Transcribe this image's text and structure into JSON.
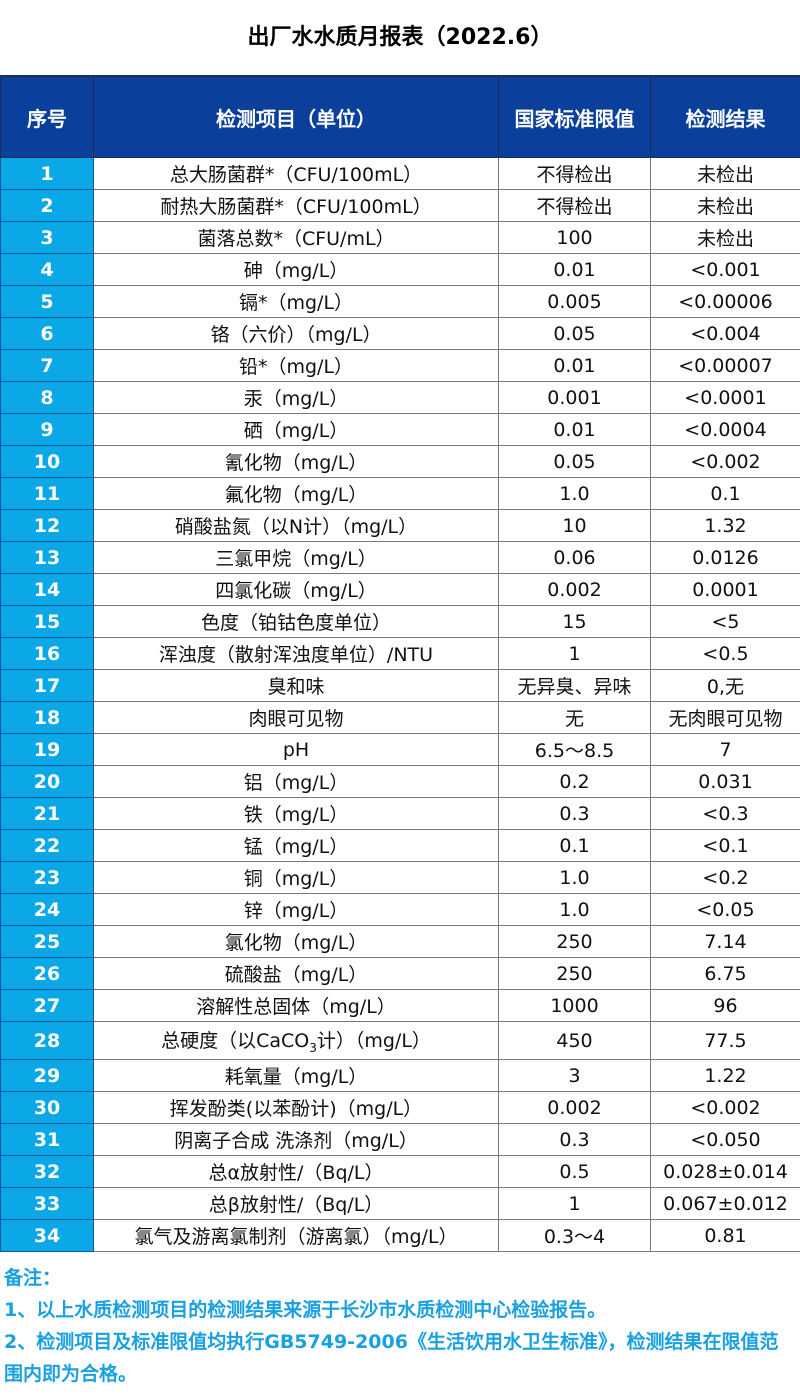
{
  "title": "出厂水水质月报表（2022.6）",
  "headers": [
    "序号",
    "检测项目（单位）",
    "国家标准限值",
    "检测结果"
  ],
  "rows": [
    [
      "1",
      "总大肠菌群*（CFU/100mL）",
      "不得检出",
      "未检出"
    ],
    [
      "2",
      "耐热大肠菌群*（CFU/100mL）",
      "不得检出",
      "未检出"
    ],
    [
      "3",
      "菌落总数*（CFU/mL）",
      "100",
      "未检出"
    ],
    [
      "4",
      "砷（mg/L）",
      "0.01",
      "<0.001"
    ],
    [
      "5",
      "镉*（mg/L）",
      "0.005",
      "<0.00006"
    ],
    [
      "6",
      "铬（六价）（mg/L）",
      "0.05",
      "<0.004"
    ],
    [
      "7",
      "铅*（mg/L）",
      "0.01",
      "<0.00007"
    ],
    [
      "8",
      "汞（mg/L）",
      "0.001",
      "<0.0001"
    ],
    [
      "9",
      "硒（mg/L）",
      "0.01",
      "<0.0004"
    ],
    [
      "10",
      "氰化物（mg/L）",
      "0.05",
      "<0.002"
    ],
    [
      "11",
      "氟化物（mg/L）",
      "1.0",
      "0.1"
    ],
    [
      "12",
      "硝酸盐氮（以N计）（mg/L）",
      "10",
      "1.32"
    ],
    [
      "13",
      "三氯甲烷（mg/L）",
      "0.06",
      "0.0126"
    ],
    [
      "14",
      "四氯化碳（mg/L）",
      "0.002",
      "0.0001"
    ],
    [
      "15",
      "色度（铂钴色度单位）",
      "15",
      "<5"
    ],
    [
      "16",
      "浑浊度（散射浑浊度单位）/NTU",
      "1",
      "<0.5"
    ],
    [
      "17",
      "臭和味",
      "无异臭、异味",
      "0,无"
    ],
    [
      "18",
      "肉眼可见物",
      "无",
      "无肉眼可见物"
    ],
    [
      "19",
      "pH",
      "6.5～8.5",
      "7"
    ],
    [
      "20",
      "铝（mg/L）",
      "0.2",
      "0.031"
    ],
    [
      "21",
      "铁（mg/L）",
      "0.3",
      "<0.3"
    ],
    [
      "22",
      "锰（mg/L）",
      "0.1",
      "<0.1"
    ],
    [
      "23",
      "铜（mg/L）",
      "1.0",
      "<0.2"
    ],
    [
      "24",
      "锌（mg/L）",
      "1.0",
      "<0.05"
    ],
    [
      "25",
      "氯化物（mg/L）",
      "250",
      "7.14"
    ],
    [
      "26",
      "硫酸盐（mg/L）",
      "250",
      "6.75"
    ],
    [
      "27",
      "溶解性总固体（mg/L）",
      "1000",
      "96"
    ],
    [
      "28",
      [
        "总硬度（以CaCO",
        "3",
        "计）（mg/L）"
      ],
      "450",
      "77.5"
    ],
    [
      "29",
      "耗氧量（mg/L）",
      "3",
      "1.22"
    ],
    [
      "30",
      "挥发酚类(以苯酚计)（mg/L）",
      "0.002",
      "<0.002"
    ],
    [
      "31",
      "阴离子合成 洗涤剂（mg/L）",
      "0.3",
      "<0.050"
    ],
    [
      "32",
      "总α放射性/（Bq/L）",
      "0.5",
      "0.028±0.014"
    ],
    [
      "33",
      "总β放射性/（Bq/L）",
      "1",
      "0.067±0.012"
    ],
    [
      "34",
      "氯气及游离氯制剂（游离氯）（mg/L）",
      "0.3～4",
      "0.81"
    ]
  ],
  "notes": {
    "heading": "备注：",
    "lines": [
      "1、以上水质检测项目的检测结果来源于长沙市水质检测中心检验报告。",
      "2、检测项目及标准限值均执行GB5749-2006《生活饮用水卫生标准》，检测结果在限值范围内即为合格。"
    ]
  },
  "colors": {
    "header_bg": "#0a3f9b",
    "index_bg": "#0aa8e6",
    "notes_text": "#19a0e0"
  }
}
